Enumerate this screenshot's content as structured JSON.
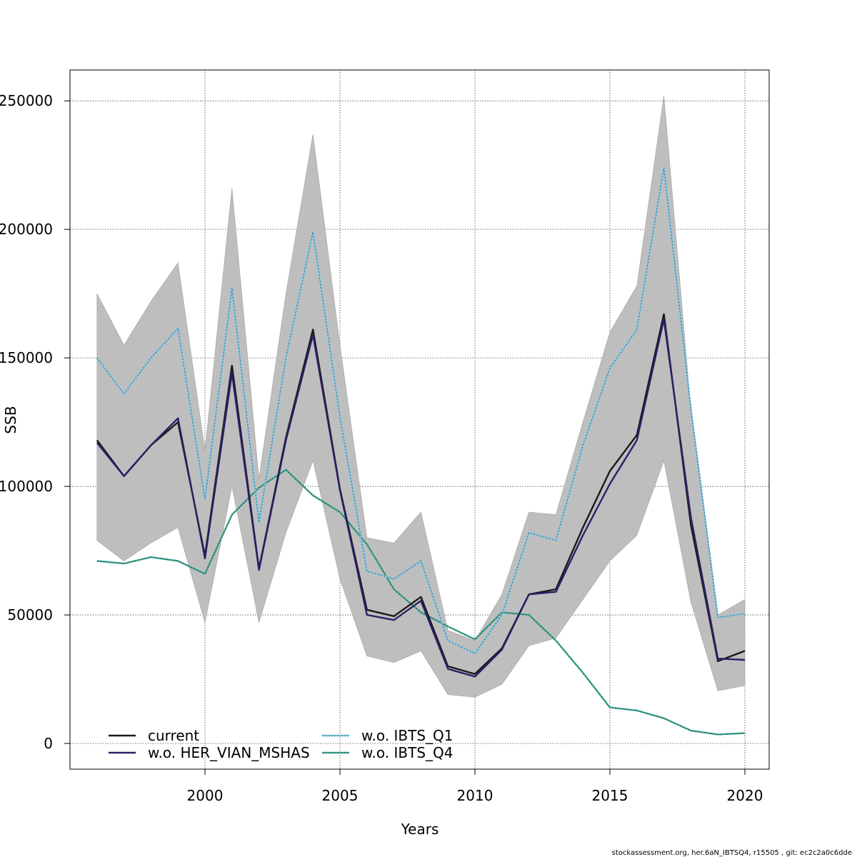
{
  "chart_data": {
    "type": "line",
    "title": "",
    "xlabel": "Years",
    "ylabel": "SSB",
    "xlim": [
      1995,
      2020.9
    ],
    "ylim": [
      -10000,
      262000
    ],
    "grid": true,
    "legend_position": "bottom-left",
    "x_ticks": [
      2000,
      2005,
      2010,
      2015,
      2020
    ],
    "x_tick_labels": [
      "2000",
      "2005",
      "2010",
      "2015",
      "2020"
    ],
    "y_ticks": [
      0,
      50000,
      100000,
      150000,
      200000,
      250000
    ],
    "y_tick_labels": [
      "0",
      "50000",
      "100000",
      "150000",
      "200000",
      "250000"
    ],
    "x": [
      1996,
      1997,
      1998,
      1999,
      2000,
      2001,
      2002,
      2003,
      2004,
      2005,
      2006,
      2007,
      2008,
      2009,
      2010,
      2011,
      2012,
      2013,
      2014,
      2015,
      2016,
      2017,
      2018,
      2019,
      2020
    ],
    "confidence_band": {
      "name": "current 95% CI",
      "color": "#bebebe",
      "upper": [
        175000,
        155000,
        172000,
        187000,
        114000,
        216000,
        103000,
        175000,
        237000,
        155000,
        80000,
        78000,
        90000,
        44000,
        40000,
        58000,
        90000,
        89000,
        125000,
        160000,
        178000,
        252000,
        130000,
        50000,
        56000
      ],
      "lower": [
        79000,
        71000,
        78000,
        84000,
        47000,
        100000,
        47000,
        82000,
        110000,
        64000,
        34000,
        31500,
        36000,
        19000,
        18000,
        23000,
        38000,
        41000,
        56000,
        71000,
        81000,
        110000,
        55000,
        20500,
        22500
      ]
    },
    "series": [
      {
        "name": "current",
        "color": "#1a1a1a",
        "dash": "solid",
        "values": [
          118000,
          104000,
          116000,
          125000,
          73000,
          147000,
          68000,
          119000,
          161000,
          99000,
          52000,
          49500,
          57000,
          30000,
          27000,
          37000,
          58000,
          60000,
          84000,
          106000,
          120000,
          167000,
          85000,
          32000,
          36000
        ]
      },
      {
        "name": "w.o. HER_VIAN_MSHAS",
        "color": "#2e2270",
        "dash": "dotted",
        "values": [
          117000,
          104000,
          116000,
          126500,
          72000,
          144000,
          67500,
          118000,
          159000,
          98500,
          50000,
          48000,
          55500,
          29000,
          26000,
          36500,
          58000,
          59000,
          81000,
          101000,
          118000,
          165000,
          88000,
          33000,
          32500
        ]
      },
      {
        "name": "w.o. IBTS_Q1",
        "color": "#80c8e8",
        "dash": "dotted",
        "values": [
          150000,
          136000,
          150000,
          161500,
          95000,
          177000,
          86000,
          150000,
          199000,
          127000,
          67000,
          64000,
          71000,
          40000,
          35000,
          50000,
          82000,
          79000,
          116000,
          146000,
          161000,
          224000,
          130000,
          49000,
          50500
        ]
      },
      {
        "name": "w.o. IBTS_Q4",
        "color": "#3fa893",
        "dash": "dotted",
        "values": [
          71000,
          70000,
          72500,
          71000,
          66000,
          89000,
          99500,
          106500,
          96500,
          90000,
          77500,
          60000,
          51000,
          45500,
          40500,
          51000,
          50000,
          40000,
          27500,
          14000,
          12800,
          9800,
          5000,
          3500,
          4000
        ]
      }
    ]
  },
  "footer": {
    "text": "stockassessment.org, her.6aN_IBTSQ4, r15505 , git: ec2c2a0c6dde"
  }
}
